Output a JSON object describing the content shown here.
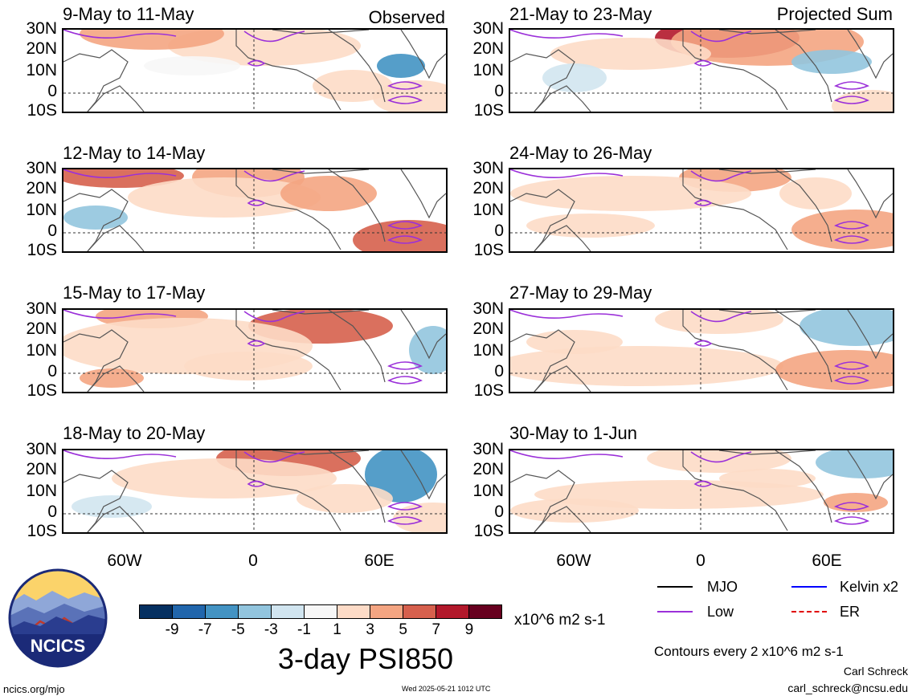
{
  "panels_left": [
    {
      "title": "9-May to 11-May",
      "label": "Observed"
    },
    {
      "title": "12-May to 14-May",
      "label": ""
    },
    {
      "title": "15-May to 17-May",
      "label": ""
    },
    {
      "title": "18-May to 20-May",
      "label": ""
    }
  ],
  "panels_right": [
    {
      "title": "21-May to 23-May",
      "label": "Projected Sum"
    },
    {
      "title": "24-May to 26-May",
      "label": ""
    },
    {
      "title": "27-May to 29-May",
      "label": ""
    },
    {
      "title": "30-May to 1-Jun",
      "label": ""
    }
  ],
  "lat_labels": [
    "30N",
    "20N",
    "10N",
    "0",
    "10S"
  ],
  "lon_labels": [
    "60W",
    "0",
    "60E"
  ],
  "colorbar": {
    "colors": [
      "#053061",
      "#2166ac",
      "#4393c3",
      "#92c5de",
      "#d1e5f0",
      "#f7f7f7",
      "#fddbc7",
      "#f4a582",
      "#d6604d",
      "#b2182b",
      "#67001f"
    ],
    "ticks": [
      "-9",
      "-7",
      "-5",
      "-3",
      "-1",
      "1",
      "3",
      "5",
      "7",
      "9"
    ],
    "units": "x10^6 m2 s-1"
  },
  "main_title": "3-day PSI850",
  "legend": {
    "mjo": {
      "label": "MJO",
      "color": "#000000"
    },
    "low": {
      "label": "Low",
      "color": "#9b30d9"
    },
    "kelvin": {
      "label": "Kelvin x2",
      "color": "#0000ff"
    },
    "er": {
      "label": "ER",
      "color": "#e00000"
    }
  },
  "contour_note": "Contours every 2 x10^6 m2 s-1",
  "author": "Carl Schreck",
  "email": "carl_schreck@ncsu.edu",
  "site": "ncics.org/mjo",
  "timestamp": "Wed 2025-05-21 1012 UTC",
  "logo_text": "NCICS"
}
